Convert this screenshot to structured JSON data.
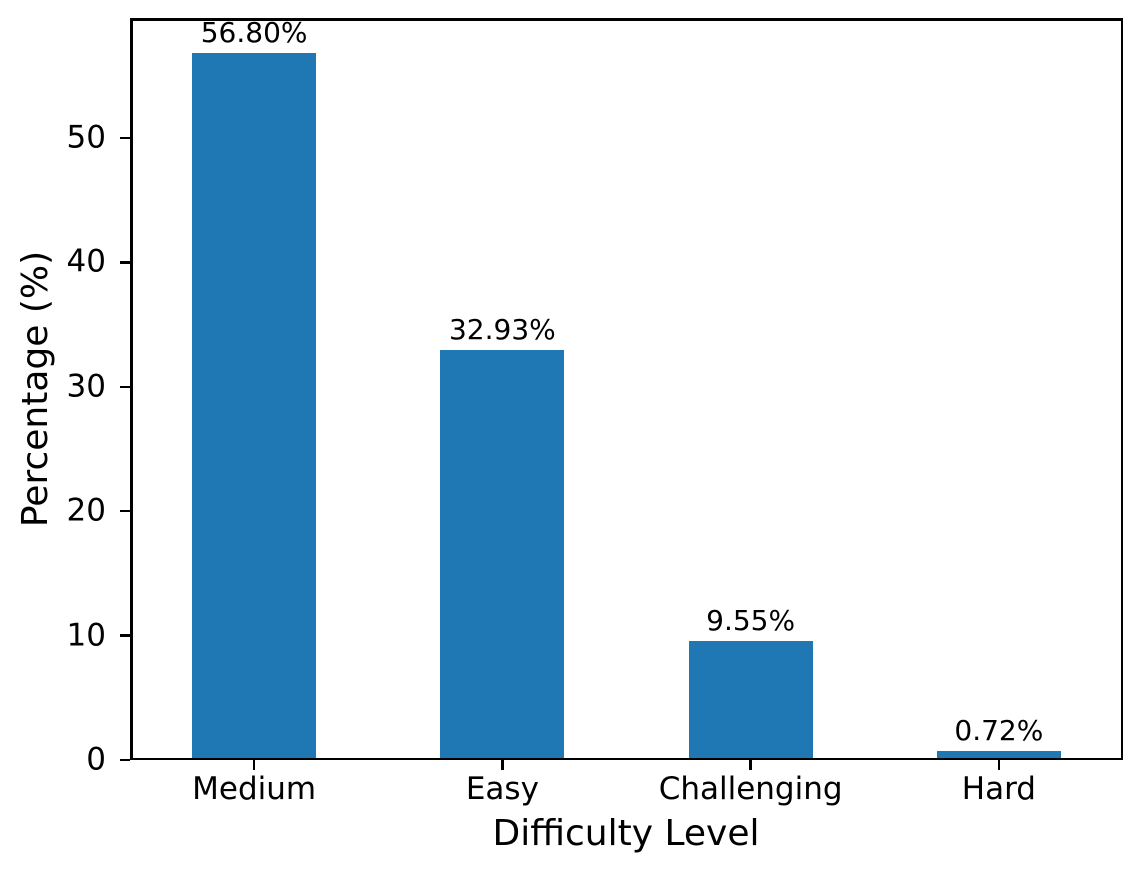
{
  "chart_data": {
    "type": "bar",
    "categories": [
      "Medium",
      "Easy",
      "Challenging",
      "Hard"
    ],
    "values": [
      56.8,
      32.93,
      9.55,
      0.72
    ],
    "value_labels": [
      "56.80%",
      "32.93%",
      "9.55%",
      "0.72%"
    ],
    "title": "",
    "xlabel": "Difficulty Level",
    "ylabel": "Percentage (%)",
    "ylim": [
      0,
      59.64
    ],
    "yticks": [
      0,
      10,
      20,
      30,
      40,
      50
    ],
    "grid": false,
    "legend_position": "none",
    "bar_width_fraction": 0.5,
    "bar_color": "#1f77b4",
    "axis_color": "#000000",
    "background_color": "#ffffff"
  }
}
